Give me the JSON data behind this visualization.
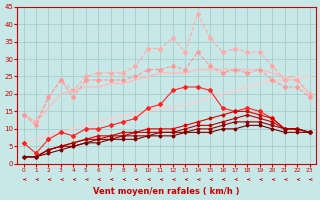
{
  "xlabel": "Vent moyen/en rafales ( km/h )",
  "xlim": [
    -0.5,
    23.5
  ],
  "ylim": [
    0,
    45
  ],
  "yticks": [
    0,
    5,
    10,
    15,
    20,
    25,
    30,
    35,
    40,
    45
  ],
  "xticks": [
    0,
    1,
    2,
    3,
    4,
    5,
    6,
    7,
    8,
    9,
    10,
    11,
    12,
    13,
    14,
    15,
    16,
    17,
    18,
    19,
    20,
    21,
    22,
    23
  ],
  "background_color": "#c8e8e8",
  "grid_color": "#a0c8c8",
  "series": [
    {
      "x": [
        0,
        1,
        2,
        3,
        4,
        5,
        6,
        7,
        8,
        9,
        10,
        11,
        12,
        13,
        14,
        15,
        16,
        17,
        18,
        19,
        20,
        21,
        22,
        23
      ],
      "y": [
        14,
        12,
        19,
        24,
        21,
        25,
        26,
        26,
        26,
        28,
        33,
        33,
        36,
        32,
        43,
        36,
        32,
        33,
        32,
        32,
        28,
        24,
        24,
        20
      ],
      "color": "#ffaaaa",
      "marker": "D",
      "markersize": 2,
      "linewidth": 0.8,
      "linestyle": "--"
    },
    {
      "x": [
        0,
        1,
        2,
        3,
        4,
        5,
        6,
        7,
        8,
        9,
        10,
        11,
        12,
        13,
        14,
        15,
        16,
        17,
        18,
        19,
        20,
        21,
        22,
        23
      ],
      "y": [
        14,
        12,
        16,
        20,
        21,
        22,
        22,
        23,
        23,
        24,
        25,
        26,
        26,
        26,
        27,
        27,
        27,
        27,
        27,
        27,
        26,
        25,
        24,
        20
      ],
      "color": "#ffbbbb",
      "marker": null,
      "linewidth": 1.0,
      "linestyle": "-"
    },
    {
      "x": [
        0,
        1,
        2,
        3,
        4,
        5,
        6,
        7,
        8,
        9,
        10,
        11,
        12,
        13,
        14,
        15,
        16,
        17,
        18,
        19,
        20,
        21,
        22,
        23
      ],
      "y": [
        14,
        11,
        19,
        24,
        19,
        24,
        24,
        24,
        24,
        25,
        27,
        27,
        28,
        27,
        32,
        28,
        26,
        27,
        26,
        27,
        24,
        22,
        22,
        19
      ],
      "color": "#ff9999",
      "marker": "D",
      "markersize": 2,
      "linewidth": 0.8,
      "linestyle": "--"
    },
    {
      "x": [
        0,
        1,
        2,
        3,
        4,
        5,
        6,
        7,
        8,
        9,
        10,
        11,
        12,
        13,
        14,
        15,
        16,
        17,
        18,
        19,
        20,
        21,
        22,
        23
      ],
      "y": [
        6,
        3,
        7,
        9,
        8,
        10,
        10,
        11,
        12,
        13,
        16,
        17,
        21,
        22,
        22,
        21,
        16,
        15,
        16,
        15,
        13,
        10,
        10,
        9
      ],
      "color": "#ff2222",
      "marker": "D",
      "markersize": 2,
      "linewidth": 0.8,
      "linestyle": "-"
    },
    {
      "x": [
        0,
        1,
        2,
        3,
        4,
        5,
        6,
        7,
        8,
        9,
        10,
        11,
        12,
        13,
        14,
        15,
        16,
        17,
        18,
        19,
        20,
        21,
        22,
        23
      ],
      "y": [
        2,
        2,
        4,
        5,
        6,
        7,
        8,
        8,
        9,
        9,
        10,
        10,
        10,
        11,
        12,
        13,
        14,
        15,
        15,
        14,
        13,
        10,
        10,
        9
      ],
      "color": "#dd0000",
      "marker": "D",
      "markersize": 1.5,
      "linewidth": 0.8,
      "linestyle": "-"
    },
    {
      "x": [
        0,
        1,
        2,
        3,
        4,
        5,
        6,
        7,
        8,
        9,
        10,
        11,
        12,
        13,
        14,
        15,
        16,
        17,
        18,
        19,
        20,
        21,
        22,
        23
      ],
      "y": [
        2,
        2,
        4,
        5,
        6,
        7,
        7,
        8,
        8,
        9,
        9,
        9,
        9,
        10,
        11,
        11,
        12,
        13,
        14,
        13,
        12,
        10,
        10,
        9
      ],
      "color": "#bb0000",
      "marker": "D",
      "markersize": 1.5,
      "linewidth": 0.8,
      "linestyle": "-"
    },
    {
      "x": [
        0,
        1,
        2,
        3,
        4,
        5,
        6,
        7,
        8,
        9,
        10,
        11,
        12,
        13,
        14,
        15,
        16,
        17,
        18,
        19,
        20,
        21,
        22,
        23
      ],
      "y": [
        2,
        2,
        4,
        5,
        5,
        6,
        7,
        7,
        8,
        8,
        8,
        9,
        9,
        9,
        10,
        10,
        11,
        12,
        12,
        12,
        11,
        10,
        10,
        9
      ],
      "color": "#990000",
      "marker": "D",
      "markersize": 1.5,
      "linewidth": 0.8,
      "linestyle": "-"
    },
    {
      "x": [
        0,
        1,
        2,
        3,
        4,
        5,
        6,
        7,
        8,
        9,
        10,
        11,
        12,
        13,
        14,
        15,
        16,
        17,
        18,
        19,
        20,
        21,
        22,
        23
      ],
      "y": [
        2,
        2,
        3,
        4,
        5,
        6,
        6,
        7,
        7,
        7,
        8,
        8,
        8,
        9,
        9,
        9,
        10,
        10,
        11,
        11,
        10,
        9,
        9,
        9
      ],
      "color": "#770000",
      "marker": "D",
      "markersize": 1.5,
      "linewidth": 0.8,
      "linestyle": "-"
    },
    {
      "x": [
        0,
        1,
        2,
        3,
        4,
        5,
        6,
        7,
        8,
        9,
        10,
        11,
        12,
        13,
        14,
        15,
        16,
        17,
        18,
        19,
        20,
        21,
        22,
        23
      ],
      "y": [
        6,
        7,
        8,
        9,
        10,
        11,
        12,
        13,
        14,
        14,
        15,
        16,
        16,
        17,
        18,
        19,
        20,
        21,
        22,
        23,
        24,
        24,
        25,
        25
      ],
      "color": "#ffcccc",
      "marker": null,
      "linewidth": 1.0,
      "linestyle": "-"
    }
  ],
  "tick_color": "#cc0000",
  "label_color": "#cc0000",
  "axis_color": "#cc0000",
  "arrow_color": "#cc0000"
}
